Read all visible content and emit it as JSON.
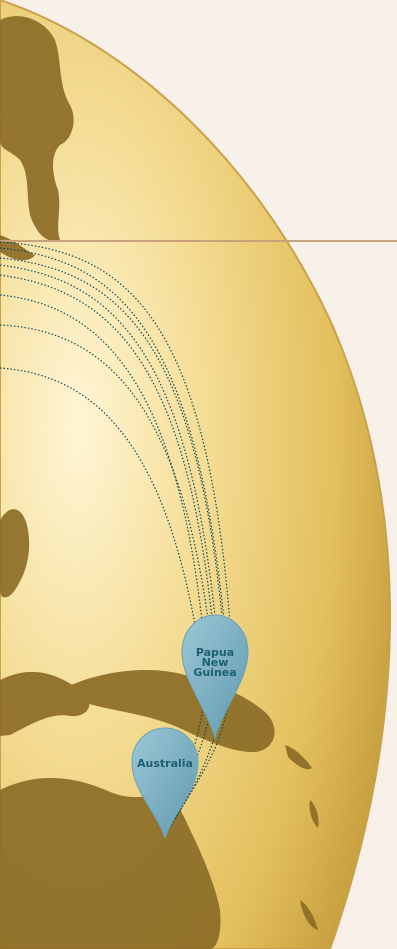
{
  "map": {
    "pins": [
      {
        "id": "papua-new-guinea",
        "label": "Papua\nNew\nGuinea"
      },
      {
        "id": "australia",
        "label": "Australia"
      }
    ],
    "colors": {
      "background": "#f7f1ea",
      "globe_light": "#fff2c7",
      "globe_mid": "#e9c766",
      "globe_dark": "#b9922f",
      "land": "#8a6a25",
      "route_line": "#0f4b5a",
      "horizon_line": "#c7a27a",
      "pin_fill": "#7eb3c6",
      "pin_text": "#1f5f73"
    }
  }
}
